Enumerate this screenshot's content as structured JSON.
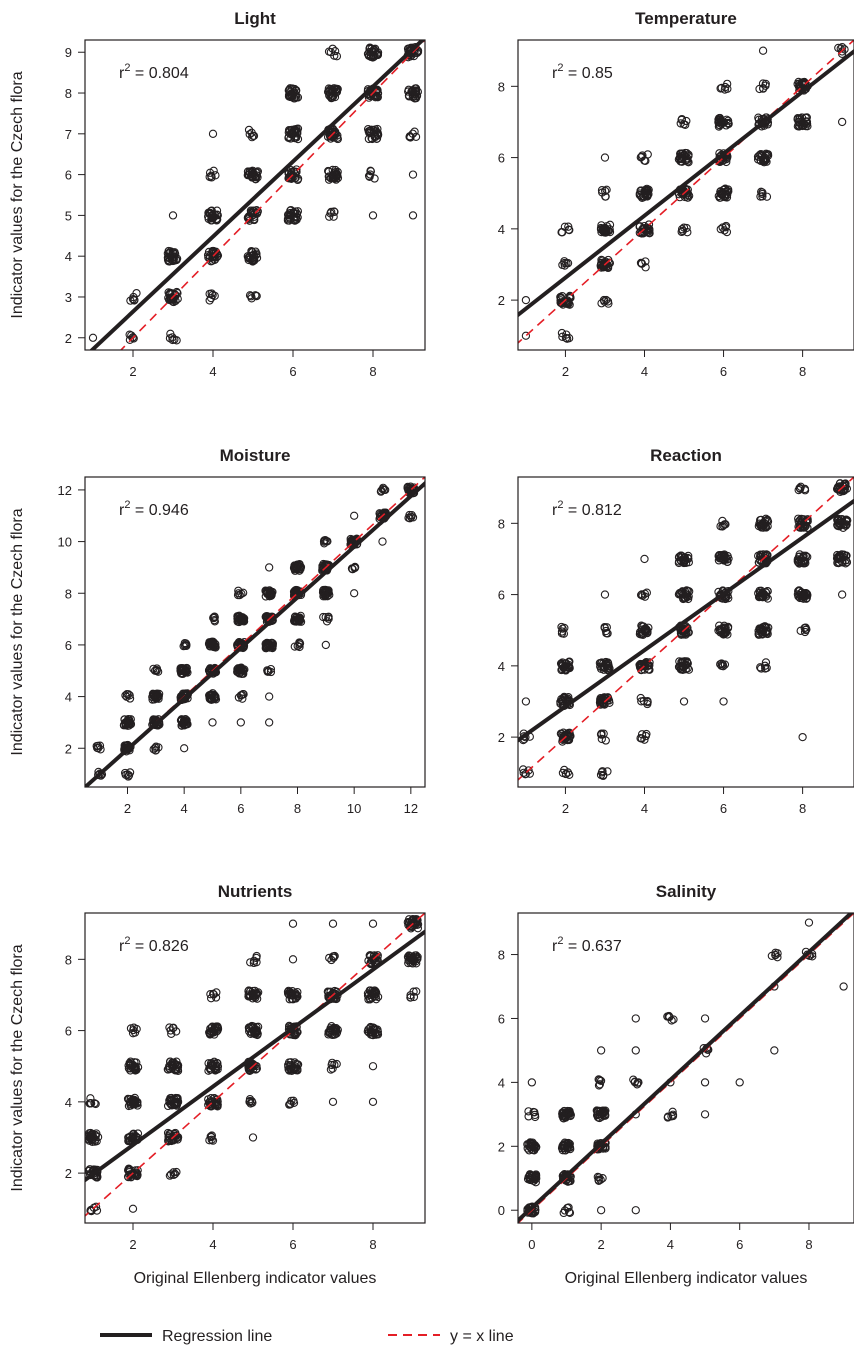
{
  "figure": {
    "ylabel": "Indicator values for the Czech flora",
    "xlabel": "Original Ellenberg indicator values",
    "legend": {
      "regression": "Regression line",
      "identity": "y = x line"
    },
    "colors": {
      "points": "#231f20",
      "regression": "#231f20",
      "identity": "#e41e26"
    }
  },
  "chart_data": [
    {
      "type": "scatter",
      "title": "Light",
      "r2": "0.804",
      "xlim": [
        0.8,
        9.3
      ],
      "ylim": [
        1.7,
        9.3
      ],
      "xticks": [
        2,
        4,
        6,
        8
      ],
      "yticks": [
        2,
        3,
        4,
        5,
        6,
        7,
        8,
        9
      ],
      "regression": {
        "intercept": 0.8,
        "slope": 0.92
      },
      "points": [
        [
          1,
          2,
          "s"
        ],
        [
          2,
          2,
          "m"
        ],
        [
          2,
          3,
          "m"
        ],
        [
          3,
          2,
          "m"
        ],
        [
          3,
          3,
          "h"
        ],
        [
          3,
          4,
          "h"
        ],
        [
          3,
          5,
          "s"
        ],
        [
          4,
          3,
          "m"
        ],
        [
          4,
          4,
          "h"
        ],
        [
          4,
          5,
          "h"
        ],
        [
          4,
          6,
          "m"
        ],
        [
          4,
          7,
          "s"
        ],
        [
          5,
          3,
          "m"
        ],
        [
          5,
          4,
          "h"
        ],
        [
          5,
          5,
          "h"
        ],
        [
          5,
          6,
          "h"
        ],
        [
          5,
          7,
          "m"
        ],
        [
          6,
          5,
          "h"
        ],
        [
          6,
          6,
          "h"
        ],
        [
          6,
          7,
          "h"
        ],
        [
          6,
          8,
          "h"
        ],
        [
          7,
          5,
          "m"
        ],
        [
          7,
          6,
          "h"
        ],
        [
          7,
          7,
          "h"
        ],
        [
          7,
          8,
          "h"
        ],
        [
          7,
          9,
          "m"
        ],
        [
          8,
          5,
          "s"
        ],
        [
          8,
          6,
          "m"
        ],
        [
          8,
          7,
          "h"
        ],
        [
          8,
          8,
          "h"
        ],
        [
          8,
          9,
          "h"
        ],
        [
          9,
          5,
          "s"
        ],
        [
          9,
          6,
          "s"
        ],
        [
          9,
          7,
          "m"
        ],
        [
          9,
          8,
          "h"
        ],
        [
          9,
          9,
          "h"
        ]
      ]
    },
    {
      "type": "scatter",
      "title": "Temperature",
      "r2": "0.85",
      "xlim": [
        0.8,
        9.3
      ],
      "ylim": [
        0.6,
        9.3
      ],
      "xticks": [
        2,
        4,
        6,
        8
      ],
      "yticks": [
        2,
        4,
        6,
        8
      ],
      "regression": {
        "intercept": 0.89,
        "slope": 0.87
      },
      "points": [
        [
          1,
          1,
          "s"
        ],
        [
          1,
          2,
          "s"
        ],
        [
          2,
          1,
          "m"
        ],
        [
          2,
          2,
          "h"
        ],
        [
          2,
          3,
          "m"
        ],
        [
          2,
          4,
          "m"
        ],
        [
          3,
          2,
          "m"
        ],
        [
          3,
          3,
          "h"
        ],
        [
          3,
          4,
          "h"
        ],
        [
          3,
          5,
          "m"
        ],
        [
          3,
          6,
          "s"
        ],
        [
          4,
          3,
          "m"
        ],
        [
          4,
          4,
          "h"
        ],
        [
          4,
          5,
          "h"
        ],
        [
          4,
          6,
          "m"
        ],
        [
          5,
          4,
          "m"
        ],
        [
          5,
          5,
          "h"
        ],
        [
          5,
          6,
          "h"
        ],
        [
          5,
          7,
          "m"
        ],
        [
          6,
          4,
          "m"
        ],
        [
          6,
          5,
          "h"
        ],
        [
          6,
          6,
          "h"
        ],
        [
          6,
          7,
          "h"
        ],
        [
          6,
          8,
          "m"
        ],
        [
          7,
          5,
          "m"
        ],
        [
          7,
          6,
          "h"
        ],
        [
          7,
          7,
          "h"
        ],
        [
          7,
          8,
          "m"
        ],
        [
          7,
          9,
          "s"
        ],
        [
          8,
          7,
          "h"
        ],
        [
          8,
          8,
          "h"
        ],
        [
          9,
          7,
          "s"
        ],
        [
          9,
          9,
          "m"
        ]
      ]
    },
    {
      "type": "scatter",
      "title": "Moisture",
      "r2": "0.946",
      "xlim": [
        0.5,
        12.5
      ],
      "ylim": [
        0.5,
        12.5
      ],
      "xticks": [
        2,
        4,
        6,
        8,
        10,
        12
      ],
      "yticks": [
        2,
        4,
        6,
        8,
        10,
        12
      ],
      "regression": {
        "intercept": 0.0,
        "slope": 0.98
      },
      "points": [
        [
          1,
          1,
          "m"
        ],
        [
          1,
          2,
          "m"
        ],
        [
          2,
          1,
          "m"
        ],
        [
          2,
          2,
          "h"
        ],
        [
          2,
          3,
          "h"
        ],
        [
          2,
          4,
          "m"
        ],
        [
          3,
          2,
          "m"
        ],
        [
          3,
          3,
          "h"
        ],
        [
          3,
          4,
          "h"
        ],
        [
          3,
          5,
          "m"
        ],
        [
          4,
          2,
          "s"
        ],
        [
          4,
          3,
          "h"
        ],
        [
          4,
          4,
          "h"
        ],
        [
          4,
          5,
          "h"
        ],
        [
          4,
          6,
          "m"
        ],
        [
          5,
          3,
          "s"
        ],
        [
          5,
          4,
          "h"
        ],
        [
          5,
          5,
          "h"
        ],
        [
          5,
          6,
          "h"
        ],
        [
          5,
          7,
          "m"
        ],
        [
          6,
          3,
          "s"
        ],
        [
          6,
          4,
          "m"
        ],
        [
          6,
          5,
          "h"
        ],
        [
          6,
          6,
          "h"
        ],
        [
          6,
          7,
          "h"
        ],
        [
          6,
          8,
          "m"
        ],
        [
          7,
          3,
          "s"
        ],
        [
          7,
          4,
          "s"
        ],
        [
          7,
          5,
          "m"
        ],
        [
          7,
          6,
          "h"
        ],
        [
          7,
          7,
          "h"
        ],
        [
          7,
          8,
          "h"
        ],
        [
          7,
          9,
          "s"
        ],
        [
          8,
          6,
          "m"
        ],
        [
          8,
          7,
          "h"
        ],
        [
          8,
          8,
          "h"
        ],
        [
          8,
          9,
          "h"
        ],
        [
          9,
          6,
          "s"
        ],
        [
          9,
          7,
          "m"
        ],
        [
          9,
          8,
          "h"
        ],
        [
          9,
          9,
          "h"
        ],
        [
          9,
          10,
          "m"
        ],
        [
          10,
          8,
          "s"
        ],
        [
          10,
          9,
          "m"
        ],
        [
          10,
          10,
          "h"
        ],
        [
          10,
          11,
          "s"
        ],
        [
          11,
          10,
          "s"
        ],
        [
          11,
          11,
          "h"
        ],
        [
          11,
          12,
          "m"
        ],
        [
          12,
          11,
          "m"
        ],
        [
          12,
          12,
          "h"
        ]
      ]
    },
    {
      "type": "scatter",
      "title": "Reaction",
      "r2": "0.812",
      "xlim": [
        0.8,
        9.3
      ],
      "ylim": [
        0.6,
        9.3
      ],
      "xticks": [
        2,
        4,
        6,
        8
      ],
      "yticks": [
        2,
        4,
        6,
        8
      ],
      "regression": {
        "intercept": 1.28,
        "slope": 0.79
      },
      "points": [
        [
          1,
          1,
          "m"
        ],
        [
          1,
          2,
          "m"
        ],
        [
          1,
          3,
          "s"
        ],
        [
          2,
          1,
          "m"
        ],
        [
          2,
          2,
          "h"
        ],
        [
          2,
          3,
          "h"
        ],
        [
          2,
          4,
          "h"
        ],
        [
          2,
          5,
          "m"
        ],
        [
          3,
          1,
          "m"
        ],
        [
          3,
          2,
          "m"
        ],
        [
          3,
          3,
          "h"
        ],
        [
          3,
          4,
          "h"
        ],
        [
          3,
          5,
          "m"
        ],
        [
          3,
          6,
          "s"
        ],
        [
          4,
          2,
          "m"
        ],
        [
          4,
          3,
          "m"
        ],
        [
          4,
          4,
          "h"
        ],
        [
          4,
          5,
          "h"
        ],
        [
          4,
          6,
          "m"
        ],
        [
          4,
          7,
          "s"
        ],
        [
          5,
          3,
          "s"
        ],
        [
          5,
          4,
          "h"
        ],
        [
          5,
          5,
          "h"
        ],
        [
          5,
          6,
          "h"
        ],
        [
          5,
          7,
          "h"
        ],
        [
          6,
          3,
          "s"
        ],
        [
          6,
          4,
          "m"
        ],
        [
          6,
          5,
          "h"
        ],
        [
          6,
          6,
          "h"
        ],
        [
          6,
          7,
          "h"
        ],
        [
          6,
          8,
          "m"
        ],
        [
          7,
          4,
          "m"
        ],
        [
          7,
          5,
          "h"
        ],
        [
          7,
          6,
          "h"
        ],
        [
          7,
          7,
          "h"
        ],
        [
          7,
          8,
          "h"
        ],
        [
          8,
          2,
          "s"
        ],
        [
          8,
          5,
          "m"
        ],
        [
          8,
          6,
          "h"
        ],
        [
          8,
          7,
          "h"
        ],
        [
          8,
          8,
          "h"
        ],
        [
          8,
          9,
          "m"
        ],
        [
          9,
          6,
          "s"
        ],
        [
          9,
          7,
          "h"
        ],
        [
          9,
          8,
          "h"
        ],
        [
          9,
          9,
          "h"
        ]
      ]
    },
    {
      "type": "scatter",
      "title": "Nutrients",
      "r2": "0.826",
      "xlim": [
        0.8,
        9.3
      ],
      "ylim": [
        0.6,
        9.3
      ],
      "xticks": [
        2,
        4,
        6,
        8
      ],
      "yticks": [
        2,
        4,
        6,
        8
      ],
      "regression": {
        "intercept": 1.15,
        "slope": 0.82
      },
      "points": [
        [
          1,
          1,
          "m"
        ],
        [
          1,
          2,
          "h"
        ],
        [
          1,
          3,
          "h"
        ],
        [
          1,
          4,
          "m"
        ],
        [
          2,
          1,
          "s"
        ],
        [
          2,
          2,
          "h"
        ],
        [
          2,
          3,
          "h"
        ],
        [
          2,
          4,
          "h"
        ],
        [
          2,
          5,
          "h"
        ],
        [
          2,
          6,
          "m"
        ],
        [
          3,
          2,
          "m"
        ],
        [
          3,
          3,
          "h"
        ],
        [
          3,
          4,
          "h"
        ],
        [
          3,
          5,
          "h"
        ],
        [
          3,
          6,
          "m"
        ],
        [
          4,
          3,
          "m"
        ],
        [
          4,
          4,
          "h"
        ],
        [
          4,
          5,
          "h"
        ],
        [
          4,
          6,
          "h"
        ],
        [
          4,
          7,
          "m"
        ],
        [
          5,
          3,
          "s"
        ],
        [
          5,
          4,
          "m"
        ],
        [
          5,
          5,
          "h"
        ],
        [
          5,
          6,
          "h"
        ],
        [
          5,
          7,
          "h"
        ],
        [
          5,
          8,
          "m"
        ],
        [
          6,
          4,
          "m"
        ],
        [
          6,
          5,
          "h"
        ],
        [
          6,
          6,
          "h"
        ],
        [
          6,
          7,
          "h"
        ],
        [
          6,
          8,
          "s"
        ],
        [
          6,
          9,
          "s"
        ],
        [
          7,
          4,
          "s"
        ],
        [
          7,
          5,
          "m"
        ],
        [
          7,
          6,
          "h"
        ],
        [
          7,
          7,
          "h"
        ],
        [
          7,
          8,
          "m"
        ],
        [
          7,
          9,
          "s"
        ],
        [
          8,
          4,
          "s"
        ],
        [
          8,
          5,
          "s"
        ],
        [
          8,
          6,
          "h"
        ],
        [
          8,
          7,
          "h"
        ],
        [
          8,
          8,
          "h"
        ],
        [
          8,
          9,
          "s"
        ],
        [
          9,
          7,
          "m"
        ],
        [
          9,
          8,
          "h"
        ],
        [
          9,
          9,
          "h"
        ]
      ]
    },
    {
      "type": "scatter",
      "title": "Salinity",
      "r2": "0.637",
      "xlim": [
        -0.4,
        9.3
      ],
      "ylim": [
        -0.4,
        9.3
      ],
      "xticks": [
        0,
        2,
        4,
        6,
        8
      ],
      "yticks": [
        0,
        2,
        4,
        6,
        8
      ],
      "regression": {
        "intercept": 0.08,
        "slope": 1.0
      },
      "points": [
        [
          0,
          0,
          "h"
        ],
        [
          0,
          1,
          "h"
        ],
        [
          0,
          2,
          "h"
        ],
        [
          0,
          3,
          "m"
        ],
        [
          0,
          4,
          "s"
        ],
        [
          1,
          0,
          "m"
        ],
        [
          1,
          1,
          "h"
        ],
        [
          1,
          2,
          "h"
        ],
        [
          1,
          3,
          "h"
        ],
        [
          2,
          0,
          "s"
        ],
        [
          2,
          1,
          "m"
        ],
        [
          2,
          2,
          "h"
        ],
        [
          2,
          3,
          "h"
        ],
        [
          2,
          4,
          "m"
        ],
        [
          2,
          5,
          "s"
        ],
        [
          3,
          0,
          "s"
        ],
        [
          3,
          3,
          "s"
        ],
        [
          3,
          4,
          "m"
        ],
        [
          3,
          5,
          "s"
        ],
        [
          3,
          6,
          "s"
        ],
        [
          4,
          3,
          "m"
        ],
        [
          4,
          4,
          "s"
        ],
        [
          4,
          6,
          "m"
        ],
        [
          5,
          3,
          "s"
        ],
        [
          5,
          4,
          "s"
        ],
        [
          5,
          5,
          "m"
        ],
        [
          5,
          6,
          "s"
        ],
        [
          6,
          4,
          "s"
        ],
        [
          7,
          5,
          "s"
        ],
        [
          7,
          7,
          "s"
        ],
        [
          7,
          8,
          "m"
        ],
        [
          8,
          8,
          "m"
        ],
        [
          8,
          9,
          "s"
        ],
        [
          9,
          7,
          "s"
        ]
      ]
    }
  ]
}
